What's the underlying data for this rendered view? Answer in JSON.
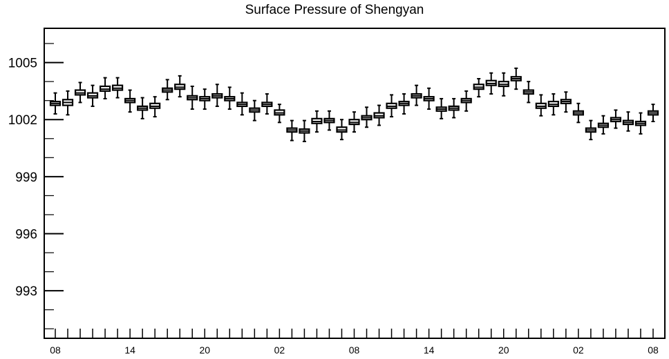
{
  "chart_data": {
    "type": "box",
    "title": "Surface Pressure of Shengyan",
    "xlabel": "",
    "ylabel": "",
    "ylim": [
      990.5,
      1006.8
    ],
    "y_ticks": [
      993,
      996,
      999,
      1002,
      1005
    ],
    "y_tick_labels": [
      "993",
      "996",
      "999",
      "1002",
      "1005"
    ],
    "x_tick_labels": [
      "08",
      "14",
      "20",
      "02",
      "08",
      "14",
      "20",
      "02",
      "08"
    ],
    "x_tick_label_indices": [
      0,
      6,
      12,
      18,
      24,
      30,
      36,
      42,
      48
    ],
    "grid": false,
    "series": [
      {
        "values": [
          1002.85,
          1002.9,
          1003.4,
          1003.25,
          1003.6,
          1003.65,
          1003.0,
          1002.6,
          1002.7,
          1003.55,
          1003.7,
          1003.15,
          1003.1,
          1003.25,
          1003.1,
          1002.8,
          1002.5,
          1002.8,
          1002.35,
          1001.45,
          1001.4,
          1001.9,
          1001.95,
          1001.45,
          1001.85,
          1002.1,
          1002.2,
          1002.7,
          1002.85,
          1003.25,
          1003.1,
          1002.55,
          1002.6,
          1003.0,
          1003.7,
          1003.9,
          1003.85,
          1004.15,
          1003.45,
          1002.7,
          1002.8,
          1002.95,
          1002.35,
          1001.45,
          1001.7,
          1002.0,
          1001.85,
          1001.8,
          1002.35
        ],
        "q1": [
          1002.75,
          1002.75,
          1003.3,
          1003.15,
          1003.5,
          1003.55,
          1002.9,
          1002.5,
          1002.6,
          1003.45,
          1003.6,
          1003.05,
          1003.0,
          1003.15,
          1003.0,
          1002.7,
          1002.4,
          1002.7,
          1002.25,
          1001.35,
          1001.3,
          1001.8,
          1001.85,
          1001.35,
          1001.75,
          1002.0,
          1002.1,
          1002.6,
          1002.75,
          1003.15,
          1003.0,
          1002.45,
          1002.5,
          1002.9,
          1003.6,
          1003.8,
          1003.75,
          1004.05,
          1003.35,
          1002.6,
          1002.7,
          1002.85,
          1002.25,
          1001.35,
          1001.6,
          1001.9,
          1001.75,
          1001.7,
          1002.25
        ],
        "q3": [
          1002.95,
          1003.05,
          1003.55,
          1003.4,
          1003.75,
          1003.8,
          1003.1,
          1002.7,
          1002.85,
          1003.65,
          1003.85,
          1003.25,
          1003.2,
          1003.35,
          1003.2,
          1002.9,
          1002.6,
          1002.9,
          1002.5,
          1001.55,
          1001.5,
          1002.05,
          1002.05,
          1001.6,
          1002.0,
          1002.2,
          1002.35,
          1002.85,
          1002.95,
          1003.35,
          1003.2,
          1002.65,
          1002.7,
          1003.1,
          1003.85,
          1004.05,
          1004.0,
          1004.25,
          1003.55,
          1002.85,
          1002.95,
          1003.05,
          1002.45,
          1001.55,
          1001.8,
          1002.1,
          1001.95,
          1001.9,
          1002.45
        ],
        "min": [
          1002.3,
          1002.25,
          1002.9,
          1002.7,
          1003.1,
          1003.15,
          1002.4,
          1002.05,
          1002.15,
          1003.05,
          1003.2,
          1002.55,
          1002.55,
          1002.7,
          1002.55,
          1002.25,
          1001.95,
          1002.3,
          1001.85,
          1000.9,
          1000.85,
          1001.35,
          1001.45,
          1000.95,
          1001.35,
          1001.6,
          1001.7,
          1002.15,
          1002.3,
          1002.75,
          1002.55,
          1002.05,
          1002.1,
          1002.45,
          1003.2,
          1003.35,
          1003.25,
          1003.6,
          1002.9,
          1002.2,
          1002.25,
          1002.4,
          1001.85,
          1000.95,
          1001.25,
          1001.55,
          1001.4,
          1001.25,
          1001.9
        ],
        "max": [
          1003.4,
          1003.5,
          1003.95,
          1003.8,
          1004.2,
          1004.2,
          1003.55,
          1003.15,
          1003.2,
          1004.1,
          1004.3,
          1003.75,
          1003.6,
          1003.85,
          1003.7,
          1003.4,
          1003.0,
          1003.35,
          1002.8,
          1001.95,
          1001.95,
          1002.45,
          1002.45,
          1002.0,
          1002.4,
          1002.65,
          1002.75,
          1003.3,
          1003.35,
          1003.8,
          1003.65,
          1003.1,
          1003.1,
          1003.5,
          1004.15,
          1004.45,
          1004.45,
          1004.7,
          1004.0,
          1003.3,
          1003.35,
          1003.45,
          1002.85,
          1001.95,
          1002.2,
          1002.5,
          1002.4,
          1002.35,
          1002.8
        ]
      }
    ]
  }
}
